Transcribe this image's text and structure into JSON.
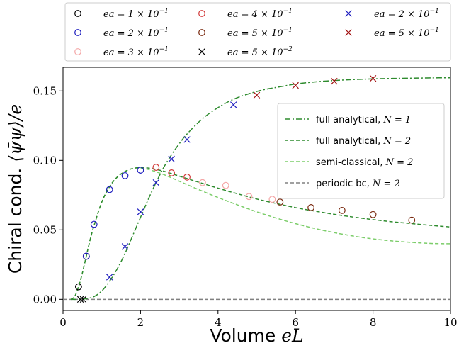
{
  "chart_data": {
    "type": "line",
    "xlabel_text": "Volume ",
    "xlabel_math": "eL",
    "ylabel_text": "Chiral cond. ",
    "ylabel_math": "⟨ψ̄ψ⟩/e",
    "xlim": [
      0,
      10
    ],
    "ylim": [
      -0.008,
      0.167
    ],
    "x_ticks": [
      0,
      2,
      4,
      6,
      8,
      10
    ],
    "x_tick_labels": [
      "0",
      "2",
      "4",
      "6",
      "8",
      "10"
    ],
    "y_ticks": [
      0.0,
      0.05,
      0.1,
      0.15
    ],
    "y_tick_labels": [
      "0.00",
      "0.05",
      "0.10",
      "0.15"
    ],
    "grid": false,
    "line_legend_position": "center-right",
    "marker_legend_position": "top, outside the axes",
    "lines": [
      {
        "name": "full analytical, ",
        "name_math": "N = 1",
        "color": "#2e8b2e",
        "dash": "8,3,2,3",
        "x": [
          0.2,
          0.4,
          0.6,
          0.8,
          1.0,
          1.2,
          1.4,
          1.6,
          1.8,
          2.0,
          2.2,
          2.4,
          2.6,
          2.8,
          3.0,
          3.2,
          3.6,
          4.0,
          4.4,
          4.8,
          5.2,
          5.6,
          6.0,
          6.5,
          7.0,
          7.5,
          8.0,
          8.5,
          9.0,
          9.5,
          10.0
        ],
        "y": [
          0.0,
          0.0,
          0.0005,
          0.002,
          0.006,
          0.013,
          0.022,
          0.033,
          0.046,
          0.059,
          0.072,
          0.084,
          0.095,
          0.104,
          0.112,
          0.119,
          0.13,
          0.138,
          0.144,
          0.148,
          0.151,
          0.153,
          0.155,
          0.1565,
          0.1575,
          0.1582,
          0.1587,
          0.159,
          0.1592,
          0.1594,
          0.1595
        ]
      },
      {
        "name": "full analytical, ",
        "name_math": "N = 2",
        "color": "#2e8b2e",
        "dash": "5,3",
        "x": [
          0.2,
          0.3,
          0.4,
          0.5,
          0.6,
          0.7,
          0.8,
          1.0,
          1.2,
          1.4,
          1.6,
          1.8,
          2.0,
          2.2,
          2.4,
          2.6,
          2.8,
          3.0,
          3.5,
          4.0,
          4.5,
          5.0,
          5.5,
          6.0,
          6.5,
          7.0,
          7.5,
          8.0,
          8.5,
          9.0,
          9.5,
          10.0
        ],
        "y": [
          0.0,
          0.002,
          0.009,
          0.019,
          0.031,
          0.043,
          0.053,
          0.07,
          0.081,
          0.088,
          0.092,
          0.0942,
          0.0948,
          0.0945,
          0.0935,
          0.0922,
          0.0905,
          0.0887,
          0.0843,
          0.08,
          0.076,
          0.0722,
          0.069,
          0.066,
          0.0635,
          0.0612,
          0.0592,
          0.0574,
          0.0558,
          0.0545,
          0.0532,
          0.0521
        ]
      },
      {
        "name": "semi-classical, ",
        "name_math": "N = 2",
        "color": "#7ccd6a",
        "dash": "5,3",
        "x": [
          0.2,
          0.3,
          0.4,
          0.5,
          0.6,
          0.7,
          0.8,
          1.0,
          1.2,
          1.4,
          1.6,
          1.8,
          2.0,
          2.2,
          2.4,
          2.6,
          2.8,
          3.0,
          3.5,
          4.0,
          4.5,
          5.0,
          5.5,
          6.0,
          6.5,
          7.0,
          7.5,
          8.0,
          8.5,
          9.0,
          9.5,
          10.0
        ],
        "y": [
          0.0,
          0.002,
          0.009,
          0.019,
          0.031,
          0.043,
          0.053,
          0.07,
          0.081,
          0.088,
          0.092,
          0.0942,
          0.0945,
          0.0935,
          0.0918,
          0.0898,
          0.0875,
          0.085,
          0.079,
          0.0733,
          0.068,
          0.063,
          0.0585,
          0.0545,
          0.051,
          0.048,
          0.0455,
          0.0435,
          0.042,
          0.041,
          0.0402,
          0.04
        ]
      },
      {
        "name": "periodic bc, ",
        "name_math": "N = 2",
        "color": "#808080",
        "dash": "5,3",
        "x": [
          0.0,
          10.0
        ],
        "y": [
          0.0,
          0.0
        ]
      }
    ],
    "marker_series": [
      {
        "name": "ea = 1 × 10",
        "exponent": "−1",
        "marker": "circle",
        "color": "#000000",
        "points": [
          [
            0.4,
            0.009
          ],
          [
            0.6,
            0.031
          ]
        ]
      },
      {
        "name": "ea = 2 × 10",
        "exponent": "−1",
        "marker": "circle",
        "color": "#1f1fbf",
        "points": [
          [
            0.6,
            0.031
          ],
          [
            0.8,
            0.054
          ],
          [
            1.2,
            0.079
          ],
          [
            1.6,
            0.089
          ],
          [
            2.0,
            0.093
          ]
        ]
      },
      {
        "name": "ea = 3 × 10",
        "exponent": "−1",
        "marker": "circle",
        "color": "#f4a6a6",
        "points": [
          [
            3.6,
            0.084
          ],
          [
            4.2,
            0.082
          ],
          [
            4.8,
            0.074
          ],
          [
            5.4,
            0.072
          ]
        ]
      },
      {
        "name": "ea = 4 × 10",
        "exponent": "−1",
        "marker": "circle",
        "color": "#d23a3a",
        "points": [
          [
            2.4,
            0.095
          ],
          [
            2.8,
            0.091
          ],
          [
            3.2,
            0.088
          ]
        ]
      },
      {
        "name": "ea = 5 × 10",
        "exponent": "−1",
        "marker": "circle",
        "color": "#7a2a10",
        "points": [
          [
            5.6,
            0.07
          ],
          [
            6.4,
            0.066
          ],
          [
            7.2,
            0.064
          ],
          [
            8.0,
            0.061
          ],
          [
            9.0,
            0.057
          ]
        ]
      },
      {
        "name": "ea = 5 × 10",
        "exponent": "−2",
        "marker": "x",
        "color": "#000000",
        "points": [
          [
            0.45,
            0.0
          ],
          [
            0.52,
            0.0
          ]
        ]
      },
      {
        "name": "ea = 2 × 10",
        "exponent": "−1",
        "marker": "x",
        "color": "#1f1fbf",
        "points": [
          [
            1.2,
            0.016
          ],
          [
            1.6,
            0.038
          ],
          [
            2.0,
            0.063
          ],
          [
            2.4,
            0.084
          ],
          [
            2.8,
            0.101
          ],
          [
            3.2,
            0.115
          ],
          [
            4.4,
            0.14
          ]
        ]
      },
      {
        "name": "ea = 5 × 10",
        "exponent": "−1",
        "marker": "x",
        "color": "#a01010",
        "points": [
          [
            5.0,
            0.147
          ],
          [
            6.0,
            0.154
          ],
          [
            7.0,
            0.157
          ],
          [
            8.0,
            0.159
          ]
        ]
      }
    ]
  }
}
